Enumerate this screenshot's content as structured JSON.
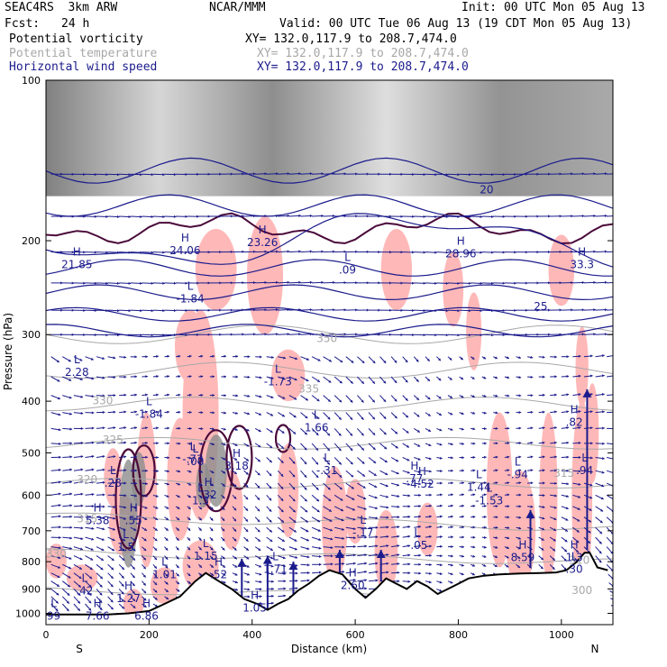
{
  "header": {
    "model": "SEAC4RS  3km ARW",
    "center": "NCAR/MMM",
    "init": "Init: 00 UTC Mon 05 Aug 13",
    "fcst_label": "Fcst:",
    "fcst_value": "24 h",
    "valid": "Valid: 00 UTC Tue 06 Aug 13 (19 CDT Mon 05 Aug 13)"
  },
  "fields": [
    {
      "name": "Potential vorticity",
      "xy": "XY= 132.0,117.9 to 208.7,474.0",
      "color": "#000000"
    },
    {
      "name": "Potential temperature",
      "xy": "XY= 132.0,117.9 to 208.7,474.0",
      "color": "#a8a8a8"
    },
    {
      "name": "Horizontal wind speed",
      "xy": "XY= 132.0,117.9 to 208.7,474.0",
      "color": "#1b1b8c"
    }
  ],
  "chart_data": {
    "type": "cross-section",
    "ylabel": "Pressure (hPa)",
    "xlabel": "Distance (km)",
    "x_ticks": [
      0,
      200,
      400,
      600,
      800,
      1000
    ],
    "y_ticks": [
      100,
      200,
      300,
      400,
      500,
      600,
      700,
      800,
      900,
      1000
    ],
    "xlim": [
      0,
      1100
    ],
    "ylim": [
      1050,
      100
    ],
    "y_scale": "log",
    "left_end_label": "S",
    "right_end_label": "N",
    "colors": {
      "pv_shade": "#ffb8b8",
      "theta": "#a8a8a8",
      "wind": "#1b1b8c",
      "pv_contour": "#4a0a3a",
      "terrain": "#000000"
    },
    "terrain": [
      [
        0,
        1005
      ],
      [
        120,
        1005
      ],
      [
        160,
        1000
      ],
      [
        200,
        990
      ],
      [
        230,
        960
      ],
      [
        260,
        930
      ],
      [
        290,
        870
      ],
      [
        310,
        840
      ],
      [
        335,
        870
      ],
      [
        360,
        900
      ],
      [
        385,
        940
      ],
      [
        410,
        960
      ],
      [
        430,
        985
      ],
      [
        450,
        960
      ],
      [
        470,
        940
      ],
      [
        490,
        905
      ],
      [
        510,
        880
      ],
      [
        530,
        850
      ],
      [
        550,
        830
      ],
      [
        575,
        845
      ],
      [
        600,
        900
      ],
      [
        620,
        935
      ],
      [
        640,
        900
      ],
      [
        660,
        860
      ],
      [
        680,
        880
      ],
      [
        700,
        900
      ],
      [
        720,
        870
      ],
      [
        740,
        890
      ],
      [
        760,
        920
      ],
      [
        780,
        900
      ],
      [
        800,
        880
      ],
      [
        820,
        860
      ],
      [
        850,
        850
      ],
      [
        880,
        845
      ],
      [
        920,
        842
      ],
      [
        960,
        840
      ],
      [
        990,
        838
      ],
      [
        1010,
        830
      ],
      [
        1030,
        800
      ],
      [
        1045,
        770
      ],
      [
        1055,
        770
      ],
      [
        1070,
        820
      ],
      [
        1090,
        830
      ]
    ],
    "theta_labels": [
      {
        "text": "330",
        "x": 110,
        "p": 405
      },
      {
        "text": "325",
        "x": 130,
        "p": 480
      },
      {
        "text": "320",
        "x": 80,
        "p": 570
      },
      {
        "text": "315",
        "x": 80,
        "p": 675
      },
      {
        "text": "330",
        "x": 20,
        "p": 785
      },
      {
        "text": "335",
        "x": 510,
        "p": 385
      },
      {
        "text": "350",
        "x": 545,
        "p": 310
      },
      {
        "text": "315",
        "x": 1005,
        "p": 555
      },
      {
        "text": "310",
        "x": 1035,
        "p": 808
      },
      {
        "text": "300",
        "x": 1040,
        "p": 920
      }
    ],
    "wind_labels": [
      {
        "text": "20",
        "x": 855,
        "p": 163
      },
      {
        "text": "25",
        "x": 960,
        "p": 270
      }
    ],
    "pv_extrema": [
      {
        "mark": "H",
        "value": "21.85",
        "x": 60,
        "p": 220
      },
      {
        "mark": "H",
        "value": "24.06",
        "x": 270,
        "p": 207
      },
      {
        "mark": "H",
        "value": "23.26",
        "x": 420,
        "p": 200
      },
      {
        "mark": "L",
        "value": ".09",
        "x": 585,
        "p": 225
      },
      {
        "mark": "H",
        "value": "28.96",
        "x": 805,
        "p": 210
      },
      {
        "mark": "H",
        "value": "33.3",
        "x": 1040,
        "p": 220
      },
      {
        "mark": "L",
        "value": "-1.84",
        "x": 280,
        "p": 255
      },
      {
        "mark": "L",
        "value": "2.28",
        "x": 60,
        "p": 350
      },
      {
        "mark": "L",
        "value": "-1.73",
        "x": 450,
        "p": 365
      },
      {
        "mark": "L",
        "value": "-1.84",
        "x": 200,
        "p": 420
      },
      {
        "mark": "L",
        "value": "1.66",
        "x": 525,
        "p": 445
      },
      {
        "mark": "H",
        "value": ".82",
        "x": 1025,
        "p": 435
      },
      {
        "mark": "L",
        "value": "-.73",
        "x": 285,
        "p": 510
      },
      {
        "mark": "L",
        "value": ".00",
        "x": 290,
        "p": 515
      },
      {
        "mark": "H",
        "value": "3.18",
        "x": 370,
        "p": 525
      },
      {
        "mark": "L",
        "value": "-.31",
        "x": 545,
        "p": 535
      },
      {
        "mark": "L",
        "value": "-.94",
        "x": 915,
        "p": 545
      },
      {
        "mark": "L",
        "value": ".94",
        "x": 1045,
        "p": 535
      },
      {
        "mark": "L",
        "value": ".28",
        "x": 130,
        "p": 565
      },
      {
        "mark": "L",
        "value": "1.3",
        "x": 300,
        "p": 610
      },
      {
        "mark": "H",
        "value": ".32",
        "x": 315,
        "p": 595
      },
      {
        "mark": "H",
        "value": ".77",
        "x": 715,
        "p": 555
      },
      {
        "mark": "H",
        "value": "4.52",
        "x": 730,
        "p": 568
      },
      {
        "mark": "L",
        "value": "1.44",
        "x": 840,
        "p": 575
      },
      {
        "mark": "L",
        "value": "-1.53",
        "x": 860,
        "p": 610
      },
      {
        "mark": "H",
        "value": "5.38",
        "x": 100,
        "p": 665
      },
      {
        "mark": "H",
        "value": ".55",
        "x": 170,
        "p": 665
      },
      {
        "mark": "L",
        "value": "-.17",
        "x": 615,
        "p": 700
      },
      {
        "mark": "L",
        "value": "-.05",
        "x": 720,
        "p": 740
      },
      {
        "mark": "L",
        "value": "1.5",
        "x": 155,
        "p": 745
      },
      {
        "mark": "L",
        "value": "1.15",
        "x": 310,
        "p": 775
      },
      {
        "mark": "H",
        "value": "8.59",
        "x": 925,
        "p": 780
      },
      {
        "mark": "H",
        "value": "1.3",
        "x": 1025,
        "p": 780
      },
      {
        "mark": "L",
        "value": ".30",
        "x": 1025,
        "p": 820
      },
      {
        "mark": "L",
        "value": "1.71",
        "x": 445,
        "p": 820
      },
      {
        "mark": "L",
        "value": "1.01",
        "x": 230,
        "p": 840
      },
      {
        "mark": "H",
        "value": ".52",
        "x": 335,
        "p": 840
      },
      {
        "mark": "H",
        "value": "2.60",
        "x": 595,
        "p": 880
      },
      {
        "mark": "L",
        "value": ".42",
        "x": 75,
        "p": 900
      },
      {
        "mark": "H",
        "value": "1.27",
        "x": 160,
        "p": 930
      },
      {
        "mark": "H",
        "value": "1.05",
        "x": 405,
        "p": 970
      },
      {
        "mark": "H",
        "value": "7.66",
        "x": 100,
        "p": 1005
      },
      {
        "mark": "H",
        "value": "6.86",
        "x": 195,
        "p": 1005
      },
      {
        "mark": "L",
        "value": "99",
        "x": 15,
        "p": 1005
      }
    ]
  }
}
